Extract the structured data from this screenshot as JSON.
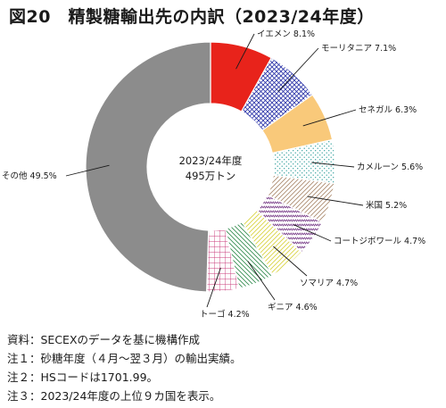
{
  "title": "図20　精製糖輸出先の内訳（2023/24年度）",
  "chart_data": {
    "type": "pie",
    "title": "図20　精製糖輸出先の内訳（2023/24年度）",
    "center_text": [
      "2023/24年度",
      "495万トン"
    ],
    "unit": "%",
    "slices": [
      {
        "label": "イエメン",
        "value": 8.1,
        "display": "8.1%",
        "color": "#e8231b",
        "pattern": "solid"
      },
      {
        "label": "モーリタニア",
        "value": 7.1,
        "display": "7.1%",
        "color": "#2a33a8",
        "pattern": "crosshatch"
      },
      {
        "label": "セネガル",
        "value": 6.3,
        "display": "6.3%",
        "color": "#f9c97a",
        "pattern": "solid"
      },
      {
        "label": "カメルーン",
        "value": 5.6,
        "display": "5.6%",
        "color": "#3aa3a0",
        "pattern": "dots"
      },
      {
        "label": "米国",
        "value": 5.2,
        "display": "5.2%",
        "color": "#a9876a",
        "pattern": "diagonal"
      },
      {
        "label": "コートジボワール",
        "value": 4.7,
        "display": "4.7%",
        "color": "#7a3f8a",
        "pattern": "zigzag"
      },
      {
        "label": "ソマリア",
        "value": 4.7,
        "display": "4.7%",
        "color": "#d8d23a",
        "pattern": "diagonal"
      },
      {
        "label": "ギニア",
        "value": 4.6,
        "display": "4.6%",
        "color": "#2e8a4a",
        "pattern": "hatch"
      },
      {
        "label": "トーゴ",
        "value": 4.2,
        "display": "4.2%",
        "color": "#c83a7a",
        "pattern": "grid"
      },
      {
        "label": "その他",
        "value": 49.5,
        "display": "49.5%",
        "color": "#8c8c8c",
        "pattern": "solid"
      }
    ]
  },
  "notes": [
    "資料：SECEXのデータを基に機構作成",
    "注１：砂糖年度（４月～翌３月）の輸出実績。",
    "注２：HSコードは1701.99。",
    "注３：2023/24年度の上位９カ国を表示。"
  ]
}
